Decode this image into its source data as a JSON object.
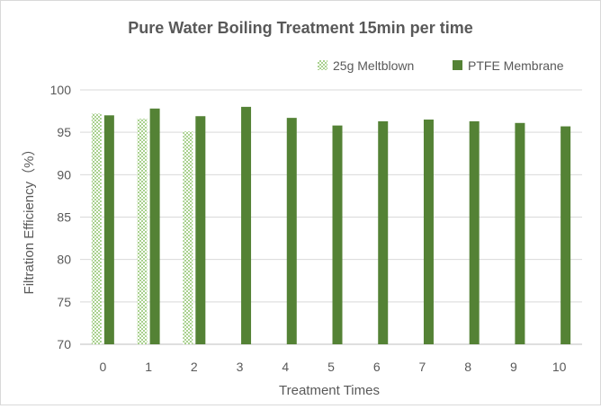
{
  "chart_data": {
    "type": "bar",
    "title": "Pure Water Boiling Treatment 15min per time",
    "xlabel": "Treatment Times",
    "ylabel": "Filtration Efficiency（%）",
    "categories": [
      "0",
      "1",
      "2",
      "3",
      "4",
      "5",
      "6",
      "7",
      "8",
      "9",
      "10"
    ],
    "ylim": [
      70,
      100
    ],
    "yticks": [
      "70",
      "75",
      "80",
      "85",
      "90",
      "95",
      "100"
    ],
    "grid": true,
    "legend_position": "top-right",
    "series": [
      {
        "name": "25g Meltblown",
        "color": "#70ad47",
        "pattern": "checkered",
        "values": [
          97.2,
          96.6,
          95.1,
          null,
          null,
          null,
          null,
          null,
          null,
          null,
          null
        ]
      },
      {
        "name": "PTFE Membrane",
        "color": "#548235",
        "pattern": "solid",
        "values": [
          97.0,
          97.8,
          96.9,
          98.0,
          96.7,
          95.8,
          96.3,
          96.5,
          96.3,
          96.1,
          95.7
        ]
      }
    ]
  }
}
